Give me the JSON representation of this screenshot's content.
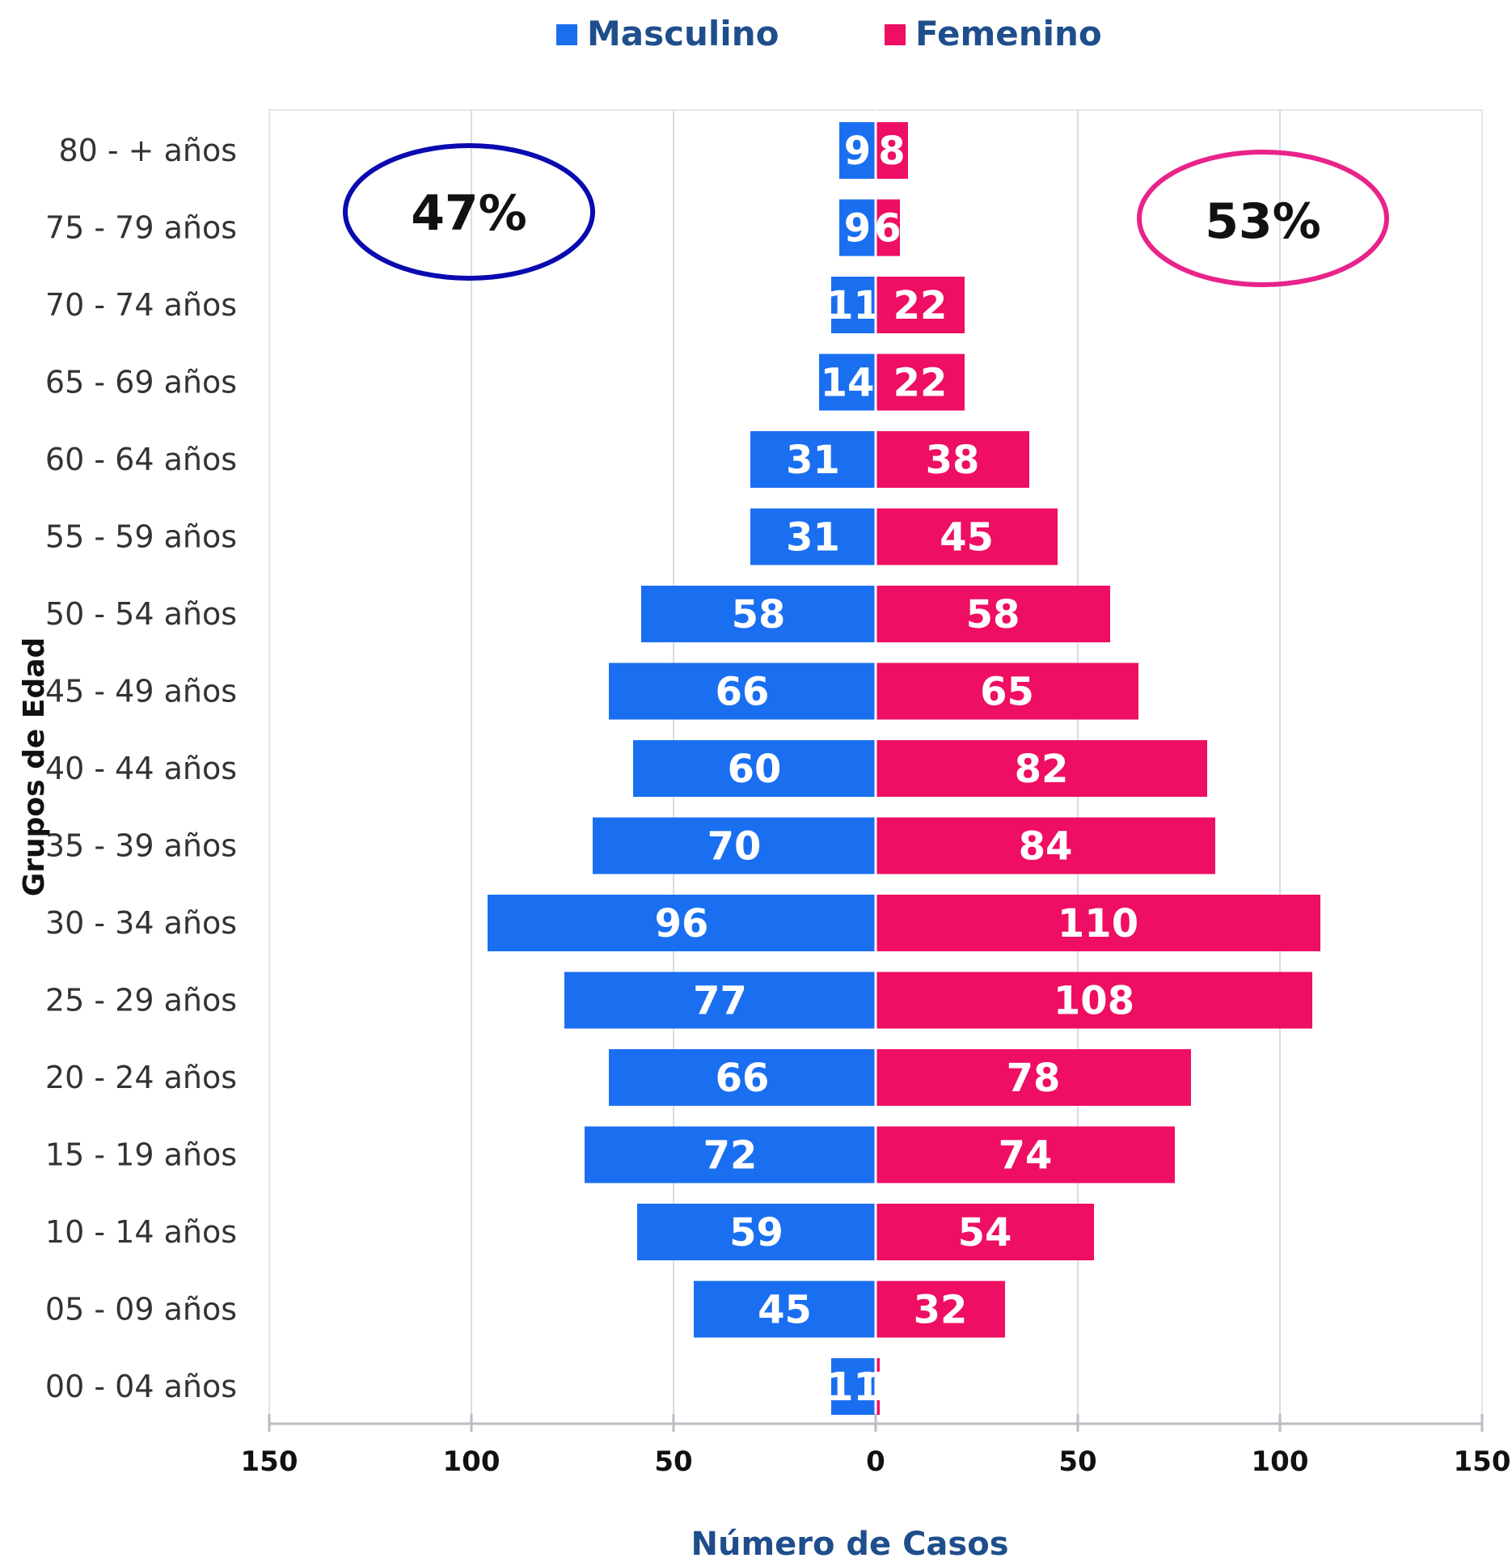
{
  "chart_data": {
    "type": "bar",
    "orientation": "horizontal",
    "layout": "population-pyramid",
    "categories": [
      "80 - +  años",
      "75 - 79 años",
      "70 - 74 años",
      "65 - 69 años",
      "60 - 64 años",
      "55 - 59 años",
      "50 - 54 años",
      "45 - 49 años",
      "40 - 44 años",
      "35 - 39 años",
      "30 - 34 años",
      "25 - 29 años",
      "20 - 24 años",
      "15 - 19 años",
      "10 - 14 años",
      "05 - 09 años",
      "00 - 04 años"
    ],
    "series": [
      {
        "name": "Masculino",
        "side": "left",
        "values": [
          9,
          9,
          11,
          14,
          31,
          31,
          58,
          66,
          60,
          70,
          96,
          77,
          66,
          72,
          59,
          45,
          11
        ]
      },
      {
        "name": "Femenino",
        "side": "right",
        "values": [
          8,
          6,
          22,
          22,
          38,
          45,
          58,
          65,
          82,
          84,
          110,
          108,
          78,
          74,
          54,
          32,
          1
        ]
      }
    ],
    "xlabel": "Número de Casos",
    "ylabel": "Grupos de Edad",
    "xlim": [
      -150,
      150
    ],
    "x_ticks": [
      {
        "value": -150,
        "label": "150"
      },
      {
        "value": -100,
        "label": "100"
      },
      {
        "value": -50,
        "label": "50"
      },
      {
        "value": 0,
        "label": "0"
      },
      {
        "value": 50,
        "label": "50"
      },
      {
        "value": 100,
        "label": "100"
      },
      {
        "value": 150,
        "label": "150"
      }
    ],
    "grid": "vertical",
    "legend": {
      "position": "top-center",
      "entries": [
        "Masculino",
        "Femenino"
      ]
    },
    "annotations": [
      {
        "text": "47%",
        "series": "Masculino",
        "shape": "ellipse",
        "color": "#0a0ab0"
      },
      {
        "text": "53%",
        "series": "Femenino",
        "shape": "ellipse",
        "color": "#e8238a"
      }
    ],
    "colors": {
      "Masculino": "#1a6ff0",
      "Femenino": "#ee0e63",
      "axis_title": "#1f4e8c",
      "grid": "#d5dde8"
    }
  }
}
